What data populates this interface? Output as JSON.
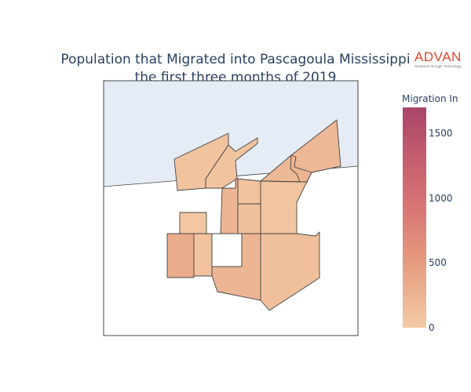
{
  "title": {
    "line1": "Population that Migrated into Pascagoula Mississippi",
    "line2": "the first three months of 2019"
  },
  "logo": {
    "word": "ADVAN",
    "tagline": "Research through Technology"
  },
  "colorbar": {
    "title": "Migration In",
    "ticks": [
      "1500",
      "1000",
      "500",
      "0"
    ],
    "range": [
      0,
      1700
    ]
  },
  "colors": {
    "water": "#e5ecf6",
    "border": "#444444",
    "low": "#f3cba5",
    "high": "#a8456a"
  },
  "regions": [
    {
      "id": "nw-strip",
      "value": 80
    },
    {
      "id": "north-diagonal",
      "value": 70
    },
    {
      "id": "ne-large",
      "value": 200
    },
    {
      "id": "ne-notch",
      "value": 250
    },
    {
      "id": "center-tall",
      "value": 230
    },
    {
      "id": "center-upper-right",
      "value": 90
    },
    {
      "id": "east-middle",
      "value": 60
    },
    {
      "id": "center-middle",
      "value": 100
    },
    {
      "id": "west-small",
      "value": 40
    },
    {
      "id": "west-block",
      "value": 320
    },
    {
      "id": "west-center",
      "value": 90
    },
    {
      "id": "center-south",
      "value": 230
    },
    {
      "id": "southeast",
      "value": 110
    },
    {
      "id": "no-data-block",
      "value": null
    }
  ]
}
